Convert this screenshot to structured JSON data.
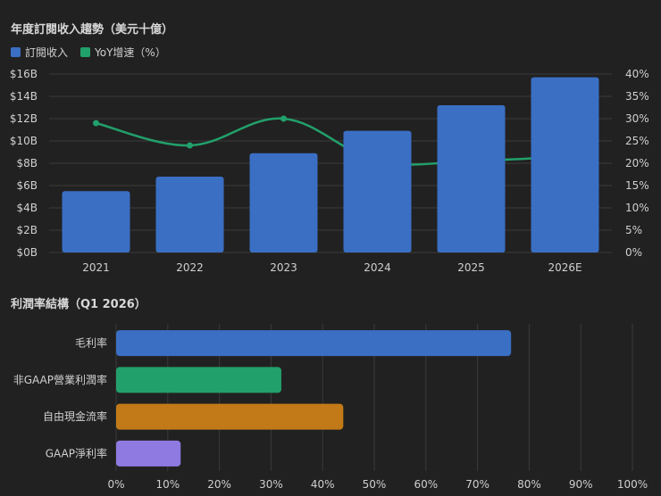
{
  "chart_data": [
    {
      "type": "bar+line",
      "title": "年度訂閱收入趨勢（美元十億）",
      "categories": [
        "2021",
        "2022",
        "2023",
        "2024",
        "2025",
        "2026E"
      ],
      "series": [
        {
          "name": "訂閱收入",
          "type": "bar",
          "axis": "left",
          "color": "#3a6fc4",
          "values": [
            5.5,
            6.8,
            8.9,
            10.9,
            13.2,
            15.7
          ]
        },
        {
          "name": "YoY增速（%）",
          "type": "line",
          "axis": "right",
          "color": "#22a06b",
          "values": [
            29,
            24,
            30,
            20.5,
            20.5,
            21.5
          ]
        }
      ],
      "y_left": {
        "min": 0,
        "max": 16,
        "ticks": [
          "$0B",
          "$2B",
          "$4B",
          "$6B",
          "$8B",
          "$10B",
          "$12B",
          "$14B",
          "$16B"
        ]
      },
      "y_right": {
        "min": 0,
        "max": 40,
        "ticks": [
          "0%",
          "5%",
          "10%",
          "15%",
          "20%",
          "25%",
          "30%",
          "35%",
          "40%"
        ]
      },
      "legend": "top-left",
      "grid": true
    },
    {
      "type": "bar",
      "orientation": "horizontal",
      "title": "利潤率結構（Q1 2026）",
      "categories": [
        "毛利率",
        "非GAAP營業利潤率",
        "自由現金流率",
        "GAAP淨利率"
      ],
      "values": [
        76.5,
        32,
        44,
        12.5
      ],
      "colors": [
        "#3a6fc4",
        "#22a06b",
        "#c17a17",
        "#8e7ae0"
      ],
      "x_axis": {
        "min": 0,
        "max": 100,
        "ticks": [
          "0%",
          "10%",
          "20%",
          "30%",
          "40%",
          "50%",
          "60%",
          "70%",
          "80%",
          "90%",
          "100%"
        ]
      },
      "grid": true
    }
  ]
}
